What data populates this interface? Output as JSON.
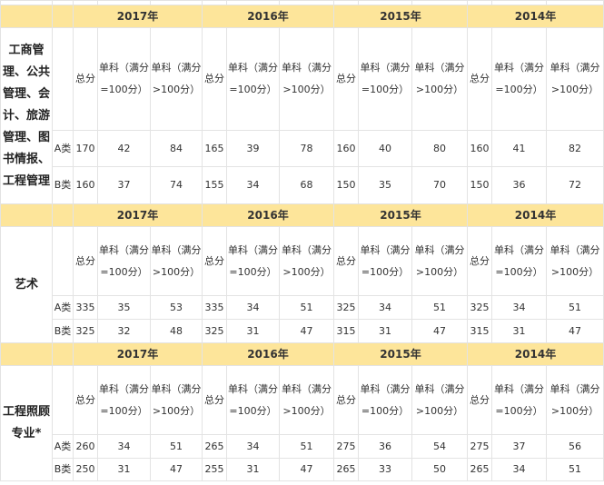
{
  "sub_headers": {
    "total": "总分",
    "single_eq": "单科（满分=100分）",
    "single_gt": "单科（满分>100分）"
  },
  "sections": [
    {
      "category": "工商管理、公共管理、会计、旅游管理、图书情报、工程管理",
      "years": [
        "2017年",
        "2016年",
        "2015年",
        "2014年"
      ],
      "rows": [
        {
          "class": "A类",
          "values": [
            "170",
            "42",
            "84",
            "165",
            "39",
            "78",
            "160",
            "40",
            "80",
            "160",
            "41",
            "82"
          ]
        },
        {
          "class": "B类",
          "values": [
            "160",
            "37",
            "74",
            "155",
            "34",
            "68",
            "150",
            "35",
            "70",
            "150",
            "36",
            "72"
          ]
        }
      ]
    },
    {
      "category": "艺术",
      "years": [
        "2017年",
        "2016年",
        "2015年",
        "2014年"
      ],
      "rows": [
        {
          "class": "A类",
          "values": [
            "335",
            "35",
            "53",
            "335",
            "34",
            "51",
            "325",
            "34",
            "51",
            "325",
            "34",
            "51"
          ]
        },
        {
          "class": "B类",
          "values": [
            "325",
            "32",
            "48",
            "325",
            "31",
            "47",
            "315",
            "31",
            "47",
            "315",
            "31",
            "47"
          ]
        }
      ]
    },
    {
      "category": "工程照顾专业*",
      "years": [
        "2017年",
        "2016年",
        "2015年",
        "2014年"
      ],
      "rows": [
        {
          "class": "A类",
          "values": [
            "260",
            "34",
            "51",
            "265",
            "34",
            "51",
            "275",
            "36",
            "54",
            "275",
            "37",
            "56"
          ]
        },
        {
          "class": "B类",
          "values": [
            "250",
            "31",
            "47",
            "255",
            "31",
            "47",
            "265",
            "33",
            "50",
            "265",
            "34",
            "51"
          ]
        }
      ]
    }
  ],
  "colors": {
    "header_bg": "#fde59a",
    "border": "#e3e3e3"
  }
}
